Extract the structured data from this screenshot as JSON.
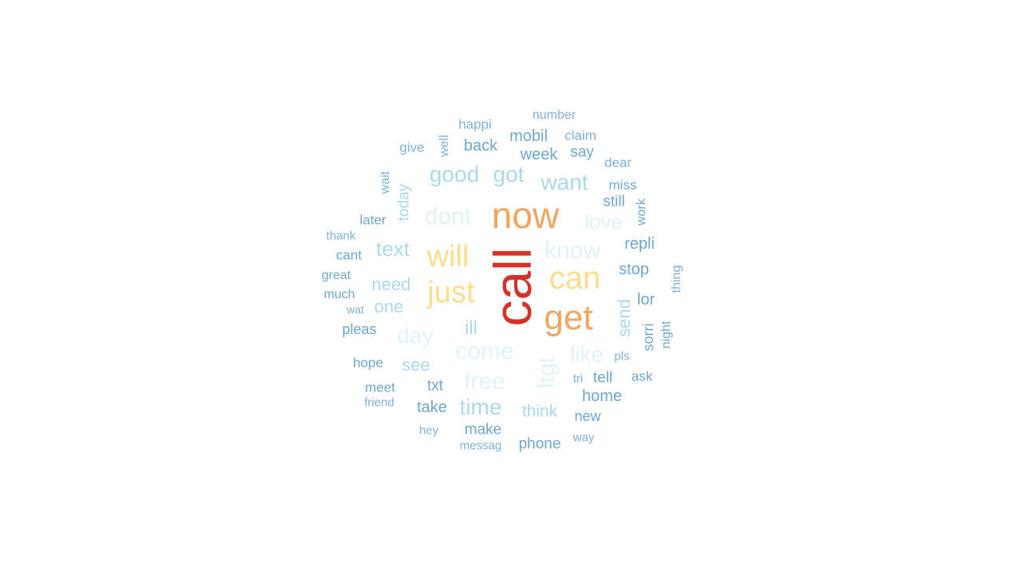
{
  "words": {
    "call": {
      "text": "call",
      "color": "#d73027"
    },
    "now": {
      "text": "now",
      "color": "#f4a45e"
    },
    "get": {
      "text": "get",
      "color": "#f4a45e"
    },
    "can": {
      "text": "can",
      "color": "#fddc8a"
    },
    "will": {
      "text": "will",
      "color": "#fddc8a"
    },
    "just": {
      "text": "just",
      "color": "#fddc8a"
    },
    "dont": {
      "text": "dont",
      "color": "#e0f3f8"
    },
    "know": {
      "text": "know",
      "color": "#e0f3f8"
    },
    "love": {
      "text": "love",
      "color": "#e0f3f8"
    },
    "day": {
      "text": "day",
      "color": "#e0f3f8"
    },
    "come": {
      "text": "come",
      "color": "#e0f3f8"
    },
    "free": {
      "text": "free",
      "color": "#e0f3f8"
    },
    "like": {
      "text": "like",
      "color": "#e0f3f8"
    },
    "ltgt": {
      "text": "ltgt",
      "color": "#e0f3f8"
    },
    "good": {
      "text": "good",
      "color": "#abd9e9"
    },
    "got": {
      "text": "got",
      "color": "#abd9e9"
    },
    "want": {
      "text": "want",
      "color": "#abd9e9"
    },
    "text": {
      "text": "text",
      "color": "#abd9e9"
    },
    "need": {
      "text": "need",
      "color": "#abd9e9"
    },
    "one": {
      "text": "one",
      "color": "#abd9e9"
    },
    "ill": {
      "text": "ill",
      "color": "#abd9e9"
    },
    "see": {
      "text": "see",
      "color": "#abd9e9"
    },
    "time": {
      "text": "time",
      "color": "#abd9e9"
    },
    "think": {
      "text": "think",
      "color": "#abd9e9"
    },
    "today": {
      "text": "today",
      "color": "#abd9e9"
    },
    "send": {
      "text": "send",
      "color": "#abd9e9"
    },
    "happi": {
      "text": "happi",
      "color": "#7fb1d6"
    },
    "number": {
      "text": "number",
      "color": "#7fb1d6"
    },
    "give": {
      "text": "give",
      "color": "#7fb1d6"
    },
    "well": {
      "text": "well",
      "color": "#7fb1d6"
    },
    "back": {
      "text": "back",
      "color": "#6ea6cd"
    },
    "mobil": {
      "text": "mobil",
      "color": "#6ea6cd"
    },
    "claim": {
      "text": "claim",
      "color": "#7fb1d6"
    },
    "week": {
      "text": "week",
      "color": "#6ea6cd"
    },
    "say": {
      "text": "say",
      "color": "#6ea6cd"
    },
    "dear": {
      "text": "dear",
      "color": "#7fb1d6"
    },
    "wait": {
      "text": "wait",
      "color": "#7fb1d6"
    },
    "miss": {
      "text": "miss",
      "color": "#6ea6cd"
    },
    "still": {
      "text": "still",
      "color": "#6ea6cd"
    },
    "work": {
      "text": "work",
      "color": "#6ea6cd"
    },
    "later": {
      "text": "later",
      "color": "#6ea6cd"
    },
    "thank": {
      "text": "thank",
      "color": "#7fb1d6"
    },
    "repli": {
      "text": "repli",
      "color": "#6ea6cd"
    },
    "cant": {
      "text": "cant",
      "color": "#6ea6cd"
    },
    "stop": {
      "text": "stop",
      "color": "#6ea6cd"
    },
    "thing": {
      "text": "thing",
      "color": "#7fb1d6"
    },
    "great": {
      "text": "great",
      "color": "#6ea6cd"
    },
    "much": {
      "text": "much",
      "color": "#6ea6cd"
    },
    "lor": {
      "text": "lor",
      "color": "#6ea6cd"
    },
    "wat": {
      "text": "wat",
      "color": "#7fb1d6"
    },
    "pleas": {
      "text": "pleas",
      "color": "#6ea6cd"
    },
    "sorri": {
      "text": "sorri",
      "color": "#6ea6cd"
    },
    "night": {
      "text": "night",
      "color": "#6ea6cd"
    },
    "pls": {
      "text": "pls",
      "color": "#7fb1d6"
    },
    "hope": {
      "text": "hope",
      "color": "#6ea6cd"
    },
    "tri": {
      "text": "tri",
      "color": "#7fb1d6"
    },
    "tell": {
      "text": "tell",
      "color": "#6ea6cd"
    },
    "ask": {
      "text": "ask",
      "color": "#6ea6cd"
    },
    "meet": {
      "text": "meet",
      "color": "#6ea6cd"
    },
    "txt": {
      "text": "txt",
      "color": "#6ea6cd"
    },
    "home": {
      "text": "home",
      "color": "#6ea6cd"
    },
    "friend": {
      "text": "friend",
      "color": "#7fb1d6"
    },
    "take": {
      "text": "take",
      "color": "#6ea6cd"
    },
    "new": {
      "text": "new",
      "color": "#6ea6cd"
    },
    "hey": {
      "text": "hey",
      "color": "#7fb1d6"
    },
    "make": {
      "text": "make",
      "color": "#6ea6cd"
    },
    "way": {
      "text": "way",
      "color": "#7fb1d6"
    },
    "messag": {
      "text": "messag",
      "color": "#7fb1d6"
    },
    "phone": {
      "text": "phone",
      "color": "#6ea6cd"
    }
  }
}
